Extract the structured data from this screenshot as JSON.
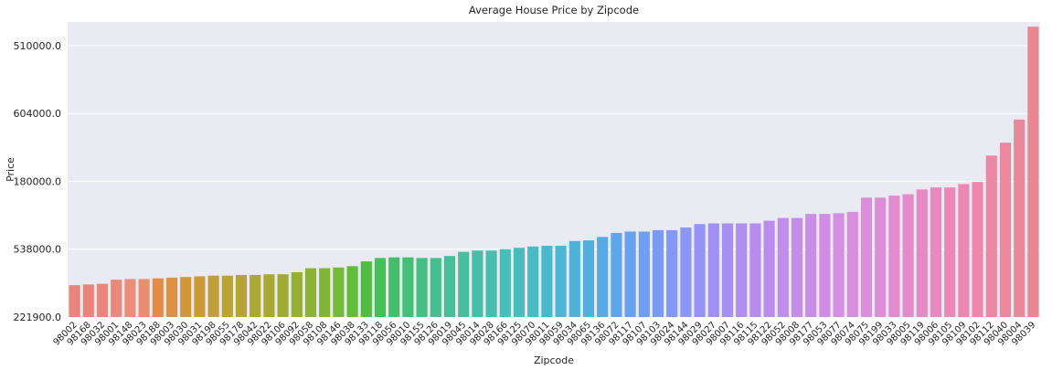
{
  "chart_data": {
    "type": "bar",
    "title": "Average House Price by Zipcode",
    "xlabel": "Zipcode",
    "ylabel": "Price",
    "grid": true,
    "background": "#EAEAF2",
    "y_tick_labels": [
      "221900.0",
      "538000.0",
      "180000.0",
      "604000.0",
      "510000.0"
    ],
    "y_tick_values": [
      0,
      1,
      2,
      3,
      4
    ],
    "ylim": [
      0,
      4.35
    ],
    "categories": [
      "98002",
      "98168",
      "98032",
      "98001",
      "98148",
      "98023",
      "98188",
      "98003",
      "98030",
      "98031",
      "98198",
      "98055",
      "98178",
      "98042",
      "98022",
      "98106",
      "98092",
      "98058",
      "98108",
      "98146",
      "98038",
      "98133",
      "98118",
      "98056",
      "98010",
      "98155",
      "98126",
      "98019",
      "98045",
      "98014",
      "98028",
      "98166",
      "98125",
      "98070",
      "98011",
      "98059",
      "98034",
      "98065",
      "98136",
      "98072",
      "98117",
      "98107",
      "98103",
      "98024",
      "98144",
      "98029",
      "98027",
      "98007",
      "98116",
      "98115",
      "98122",
      "98052",
      "98008",
      "98177",
      "98053",
      "98077",
      "98074",
      "98075",
      "98199",
      "98033",
      "98005",
      "98119",
      "98006",
      "98105",
      "98109",
      "98102",
      "98112",
      "98040",
      "98004",
      "98039"
    ],
    "values": [
      0.47,
      0.48,
      0.49,
      0.55,
      0.56,
      0.56,
      0.57,
      0.58,
      0.59,
      0.6,
      0.61,
      0.61,
      0.62,
      0.62,
      0.63,
      0.63,
      0.66,
      0.72,
      0.72,
      0.73,
      0.75,
      0.82,
      0.87,
      0.88,
      0.88,
      0.87,
      0.87,
      0.9,
      0.96,
      0.98,
      0.98,
      1.0,
      1.02,
      1.04,
      1.05,
      1.05,
      1.12,
      1.13,
      1.18,
      1.24,
      1.26,
      1.26,
      1.28,
      1.28,
      1.32,
      1.37,
      1.38,
      1.38,
      1.38,
      1.38,
      1.42,
      1.46,
      1.46,
      1.52,
      1.52,
      1.53,
      1.55,
      1.76,
      1.76,
      1.79,
      1.81,
      1.88,
      1.91,
      1.91,
      1.96,
      1.99,
      2.38,
      2.57,
      2.91,
      4.28
    ],
    "colors": [
      "#E8847B",
      "#E9857B",
      "#EA877C",
      "#EA887C",
      "#EB8C7D",
      "#E98E73",
      "#E48C47",
      "#DB9244",
      "#D3963B",
      "#CC9A36",
      "#C49E36",
      "#BCA135",
      "#B5A435",
      "#ADA734",
      "#A7A935",
      "#9FAC33",
      "#96AF35",
      "#8CB237",
      "#81B536",
      "#74B937",
      "#63BB3A",
      "#50BE45",
      "#45BF58",
      "#44BE6A",
      "#45BF77",
      "#45BF82",
      "#46BE8D",
      "#46BE97",
      "#47BEA0",
      "#48BEA8",
      "#48BEAF",
      "#49BDB7",
      "#49BCBE",
      "#4ABBC5",
      "#4BB9CC",
      "#4CB6D4",
      "#4EB3DA",
      "#52AFE0",
      "#58AAE6",
      "#5EA6EA",
      "#67A2EE",
      "#709EF1",
      "#799BF3",
      "#8398F4",
      "#8C96F5",
      "#9693F5",
      "#9F90F4",
      "#A78EF3",
      "#AF8DF1",
      "#B58CEF",
      "#BA8DEC",
      "#BF8EEA",
      "#C48EE8",
      "#C98FE6",
      "#CE8FE3",
      "#D38FE1",
      "#D78EDD",
      "#DB8ED9",
      "#DF8DD4",
      "#E28CCF",
      "#E58BC9",
      "#E78AC3",
      "#E989BD",
      "#EA89B7",
      "#EB88B1",
      "#EB88AB",
      "#EB88A5",
      "#EA889F",
      "#E98899",
      "#E98893"
    ]
  }
}
